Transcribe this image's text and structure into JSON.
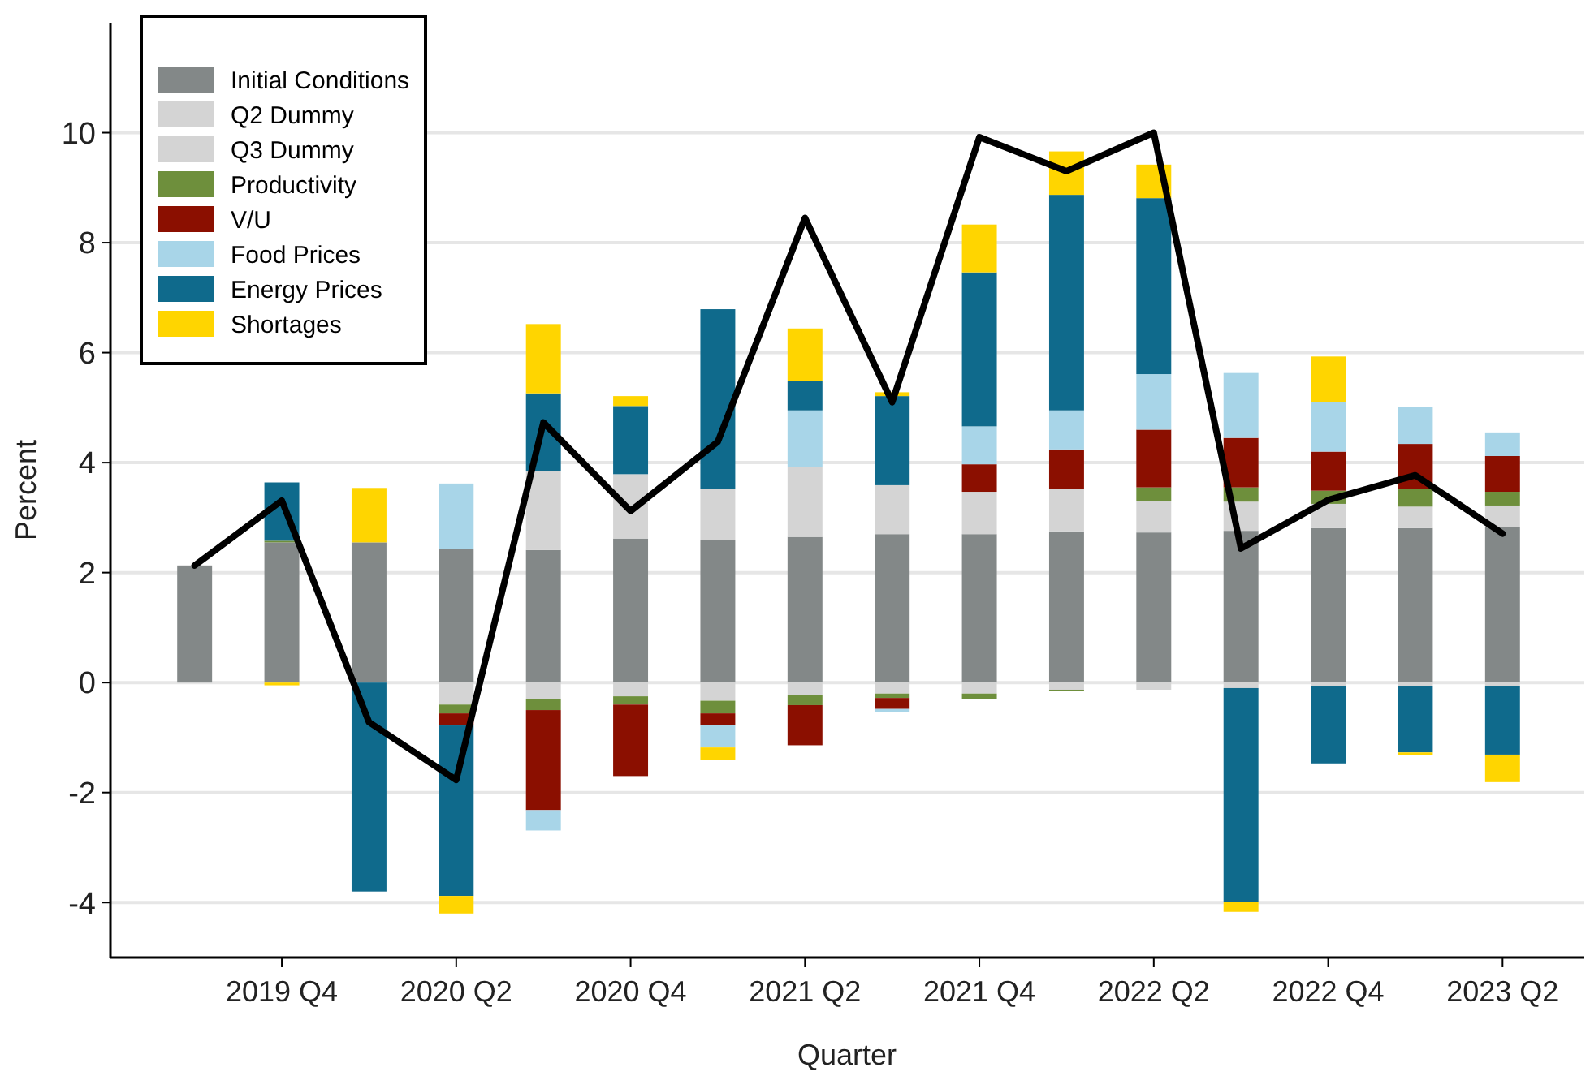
{
  "chart_data": {
    "type": "bar",
    "stacked": true,
    "xlabel": "Quarter",
    "ylabel": "Percent",
    "categories": [
      null,
      "2019 Q4",
      null,
      "2020 Q2",
      null,
      "2020 Q4",
      null,
      "2021 Q2",
      null,
      "2021 Q4",
      null,
      "2022 Q2",
      null,
      "2022 Q4",
      null,
      "2023 Q2"
    ],
    "ylim": [
      -5,
      12
    ],
    "yticks": [
      -4,
      -2,
      0,
      2,
      4,
      6,
      8,
      10
    ],
    "grid": "y",
    "legend": "top left",
    "marker": "none",
    "line_style": "solid",
    "series": [
      {
        "name": "Initial Conditions",
        "color": "#838888",
        "values": [
          2.13,
          2.55,
          2.55,
          2.43,
          2.41,
          2.62,
          2.6,
          2.65,
          2.7,
          2.7,
          2.75,
          2.73,
          2.76,
          2.81,
          2.81,
          2.83
        ]
      },
      {
        "name": "Q2 Dummy",
        "color": "#d4d4d4",
        "values": [
          null,
          null,
          null,
          null,
          1.43,
          1.17,
          0.92,
          1.27,
          0.89,
          0.77,
          0.77,
          0.57,
          0.53,
          0.44,
          0.39,
          0.39
        ]
      },
      {
        "name": "Q3 Dummy",
        "color": "#d4d4d4",
        "values": [
          null,
          null,
          null,
          -0.4,
          -0.3,
          -0.25,
          -0.33,
          -0.23,
          -0.2,
          -0.2,
          -0.13,
          -0.13,
          -0.1,
          -0.07,
          -0.07,
          -0.07
        ]
      },
      {
        "name": "Productivity",
        "color": "#6e8f3c",
        "values": [
          null,
          0.03,
          null,
          -0.16,
          -0.2,
          -0.15,
          -0.23,
          -0.18,
          -0.08,
          -0.1,
          -0.02,
          0.25,
          0.26,
          0.24,
          0.32,
          0.25
        ]
      },
      {
        "name": "V/U",
        "color": "#8b0f00",
        "values": [
          null,
          null,
          null,
          -0.22,
          -1.82,
          -1.3,
          -0.22,
          -0.73,
          -0.2,
          0.5,
          0.72,
          1.05,
          0.9,
          0.71,
          0.82,
          0.65
        ]
      },
      {
        "name": "Food Prices",
        "color": "#a8d5e8",
        "values": [
          null,
          null,
          null,
          1.19,
          -0.37,
          null,
          -0.4,
          1.03,
          -0.06,
          0.69,
          0.71,
          1.01,
          1.18,
          0.9,
          0.67,
          0.43
        ]
      },
      {
        "name": "Energy Prices",
        "color": "#0f6a8c",
        "values": [
          null,
          1.06,
          -3.8,
          -3.1,
          1.42,
          1.24,
          3.27,
          0.53,
          1.62,
          2.8,
          3.92,
          3.2,
          -3.89,
          -1.4,
          -1.2,
          -1.24
        ]
      },
      {
        "name": "Shortages",
        "color": "#ffd500",
        "values": [
          null,
          -0.05,
          0.99,
          -0.32,
          1.26,
          0.18,
          -0.22,
          0.96,
          0.07,
          0.87,
          0.79,
          0.61,
          -0.18,
          0.83,
          -0.05,
          -0.5
        ]
      },
      {
        "type": "line",
        "color": "#000000",
        "values": [
          2.13,
          3.31,
          -0.72,
          -1.77,
          4.73,
          3.12,
          4.38,
          8.45,
          5.1,
          9.92,
          9.3,
          10.0,
          2.44,
          3.32,
          3.77,
          2.71
        ]
      }
    ]
  }
}
